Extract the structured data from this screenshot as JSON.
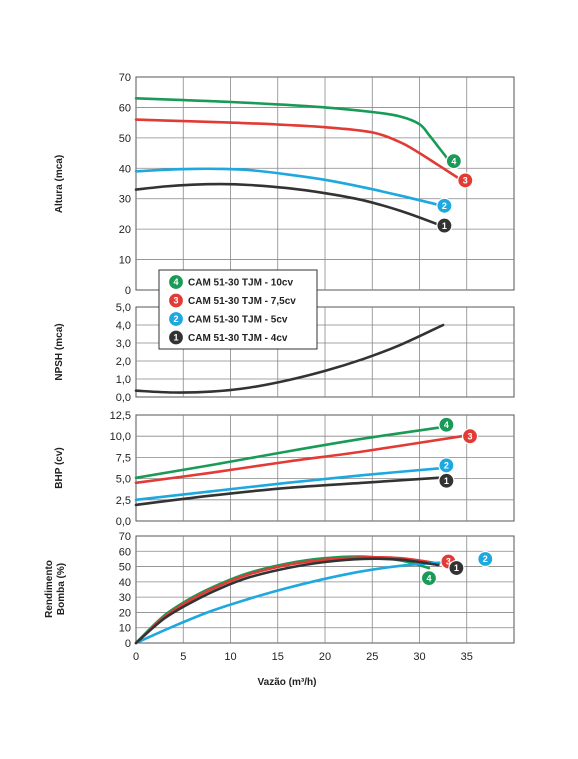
{
  "chart_data": {
    "type": "line",
    "xlabel": "Vazão (m³/h)",
    "x_ticks": [
      "0",
      "5",
      "10",
      "15",
      "20",
      "25",
      "30",
      "35"
    ],
    "xlim": [
      0,
      40
    ],
    "colors": {
      "1": "#333333",
      "2": "#1ea8e0",
      "3": "#e23a34",
      "4": "#1a9a57"
    },
    "legend": {
      "placement": "inside-left",
      "entries": [
        {
          "badge": "4",
          "label": "CAM 51-30 TJM - 10cv"
        },
        {
          "badge": "3",
          "label": "CAM 51-30 TJM - 7,5cv"
        },
        {
          "badge": "2",
          "label": "CAM 51-30 TJM - 5cv"
        },
        {
          "badge": "1",
          "label": "CAM 51-30 TJM - 4cv"
        }
      ]
    },
    "panels": [
      {
        "id": "altura",
        "ylabel": "Altura (mca)",
        "ylim": [
          0,
          70
        ],
        "y_ticks": [
          "0",
          "10",
          "20",
          "30",
          "40",
          "50",
          "60",
          "70"
        ],
        "series": [
          {
            "badge": "4",
            "x": [
              0,
              5,
              10,
              15,
              20,
              25,
              28,
              30,
              31,
              32,
              33
            ],
            "y": [
              63,
              62.4,
              61.8,
              61,
              60,
              58.5,
              57,
              54.5,
              51,
              47,
              43
            ]
          },
          {
            "badge": "3",
            "x": [
              0,
              5,
              10,
              15,
              20,
              25,
              28,
              30,
              32,
              34
            ],
            "y": [
              56,
              55.5,
              55,
              54.4,
              53.5,
              51.8,
              48.5,
              45,
              41,
              37
            ]
          },
          {
            "badge": "2",
            "x": [
              0,
              3,
              6,
              9,
              12,
              16,
              20,
              24,
              28,
              32
            ],
            "y": [
              39,
              39.5,
              39.8,
              39.8,
              39.4,
              38,
              36.2,
              33.8,
              31,
              28
            ]
          },
          {
            "badge": "1",
            "x": [
              0,
              3,
              6,
              9,
              12,
              16,
              20,
              24,
              28,
              32
            ],
            "y": [
              33,
              34,
              34.6,
              34.8,
              34.5,
              33.5,
              31.8,
              29.5,
              26,
              21.5
            ]
          }
        ]
      },
      {
        "id": "npsh",
        "ylabel": "NPSH (mca)",
        "ylim": [
          0,
          5
        ],
        "y_ticks": [
          "0,0",
          "1,0",
          "2,0",
          "3,0",
          "4,0",
          "5,0"
        ],
        "series": [
          {
            "badge": "1",
            "x": [
              0,
              4,
              8,
              12,
              16,
              20,
              24,
              28,
              32.5
            ],
            "y": [
              0.35,
              0.25,
              0.3,
              0.52,
              0.92,
              1.45,
              2.1,
              2.9,
              4.0
            ]
          }
        ]
      },
      {
        "id": "bhp",
        "ylabel": "BHP (cv)",
        "ylim": [
          0,
          12.5
        ],
        "y_ticks": [
          "0,0",
          "2,5",
          "5,0",
          "7,5",
          "10,0",
          "12,5"
        ],
        "series": [
          {
            "badge": "4",
            "x": [
              0,
              8,
              16,
              24,
              32
            ],
            "y": [
              5.1,
              6.6,
              8.2,
              9.7,
              11.0
            ]
          },
          {
            "badge": "3",
            "x": [
              0,
              8,
              16,
              24,
              34.5
            ],
            "y": [
              4.5,
              5.7,
              7.0,
              8.2,
              10.0
            ]
          },
          {
            "badge": "2",
            "x": [
              0,
              8,
              16,
              24,
              32
            ],
            "y": [
              2.5,
              3.5,
              4.5,
              5.4,
              6.2
            ]
          },
          {
            "badge": "1",
            "x": [
              0,
              8,
              16,
              24,
              32
            ],
            "y": [
              1.9,
              3.0,
              3.9,
              4.5,
              5.1
            ]
          }
        ]
      },
      {
        "id": "rendimento",
        "ylabel": "Rendimento Bomba (%)",
        "ylim": [
          0,
          70
        ],
        "y_ticks": [
          "0",
          "10",
          "20",
          "30",
          "40",
          "50",
          "60",
          "70"
        ],
        "series": [
          {
            "badge": "4",
            "x": [
              0,
              3,
              6,
              9,
              12,
              16,
              20,
              24,
              28,
              31
            ],
            "y": [
              0,
              18,
              30,
              39,
              46,
              52,
              55.5,
              56.5,
              54,
              49
            ]
          },
          {
            "badge": "3",
            "x": [
              0,
              3,
              6,
              9,
              12,
              16,
              20,
              24,
              28,
              32
            ],
            "y": [
              0,
              17,
              29,
              38,
              45,
              51,
              54.5,
              56,
              55.5,
              52
            ]
          },
          {
            "badge": "2",
            "x": [
              0,
              4,
              8,
              12,
              16,
              20,
              24,
              28,
              32,
              34
            ],
            "y": [
              0,
              11,
              21,
              29,
              36,
              42,
              47,
              50.5,
              52.5,
              53
            ]
          },
          {
            "badge": "1",
            "x": [
              0,
              3,
              6,
              9,
              12,
              16,
              20,
              24,
              28,
              32
            ],
            "y": [
              0,
              16,
              27,
              36,
              43,
              49,
              53,
              55,
              54.5,
              51
            ]
          }
        ]
      }
    ]
  }
}
